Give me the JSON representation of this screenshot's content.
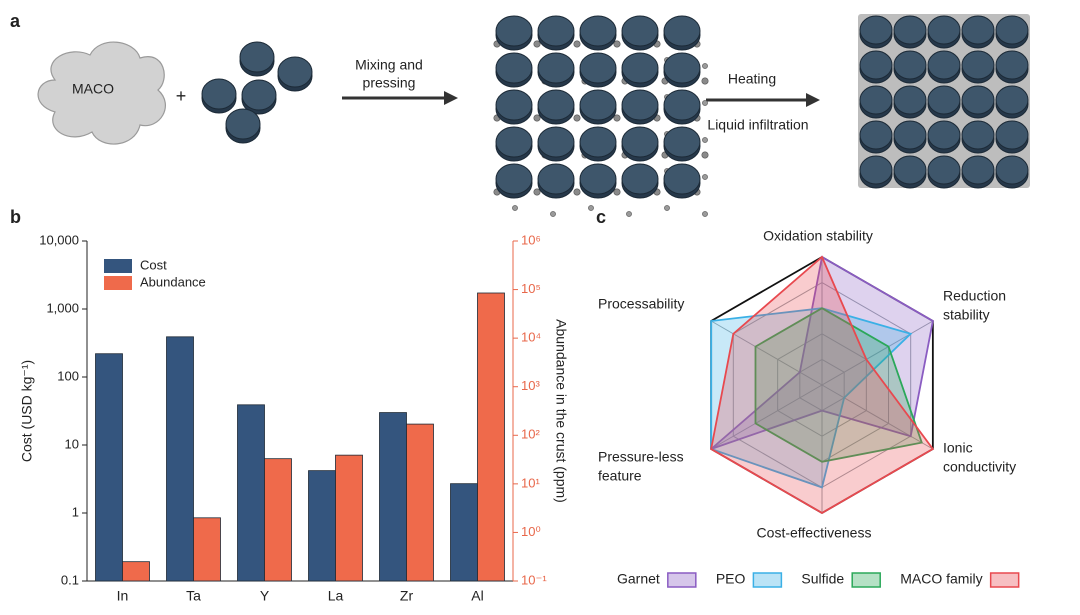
{
  "panel_labels": [
    "a",
    "b",
    "c"
  ],
  "schematic": {
    "cloud_label": "MACO",
    "plus": "+",
    "step1": [
      "Mixing and",
      "pressing"
    ],
    "step2_top": "Heating",
    "step2_bottom": "Liquid infiltration"
  },
  "chart_data": [
    {
      "type": "bar",
      "log_scale": true,
      "categories": [
        "In",
        "Ta",
        "Y",
        "La",
        "Zr",
        "Al"
      ],
      "ylabel": "Cost (USD kg⁻¹)",
      "y2label": "Abundance in the crust (ppm)",
      "ylim": [
        0.1,
        10000
      ],
      "yticks": [
        0.1,
        1,
        10,
        100,
        {
          "value": 1000,
          "label": "1,000"
        },
        {
          "value": 10000,
          "label": "10,000"
        }
      ],
      "y2lim": [
        0.1,
        1000000
      ],
      "y2ticks": [
        {
          "value": 0.1,
          "label": "10⁻¹"
        },
        {
          "value": 1,
          "label": "10⁰"
        },
        {
          "value": 10,
          "label": "10¹"
        },
        {
          "value": 100,
          "label": "10²"
        },
        {
          "value": 1000,
          "label": "10³"
        },
        {
          "value": 10000,
          "label": "10⁴"
        },
        {
          "value": 100000,
          "label": "10⁵"
        },
        {
          "value": 1000000,
          "label": "10⁶"
        }
      ],
      "y2color": "#e8674a",
      "legend": "upper left",
      "series": [
        {
          "name": "Cost",
          "color": "#34557e",
          "values": [
            220,
            390,
            39,
            4.2,
            30,
            2.7
          ]
        },
        {
          "name": "Abundance",
          "color": "#ef6a4b",
          "axis": "y2",
          "values": [
            0.25,
            2,
            33,
            39,
            170,
            85000
          ]
        }
      ]
    },
    {
      "type": "radar",
      "axes": [
        [
          "Oxidation stability"
        ],
        [
          "Reduction",
          "stability"
        ],
        [
          "Ionic",
          "conductivity"
        ],
        [
          "Cost-effectiveness"
        ],
        [
          "Pressure-less",
          "feature"
        ],
        [
          "Processability"
        ]
      ],
      "rlim": [
        0,
        5
      ],
      "rticks": [
        1,
        2,
        3,
        4,
        5
      ],
      "series": [
        {
          "name": "Garnet",
          "color": "#8a5cc2",
          "values": [
            5,
            5,
            4,
            1,
            5,
            1
          ]
        },
        {
          "name": "PEO",
          "color": "#3ab0e6",
          "values": [
            3,
            4,
            1,
            4,
            5,
            5
          ]
        },
        {
          "name": "Sulfide",
          "color": "#2ba85a",
          "values": [
            3,
            3,
            4.5,
            3,
            3,
            3
          ]
        },
        {
          "name": "MACO family",
          "color": "#e8494f",
          "values": [
            5,
            2,
            5,
            5,
            5,
            4
          ]
        }
      ]
    }
  ]
}
